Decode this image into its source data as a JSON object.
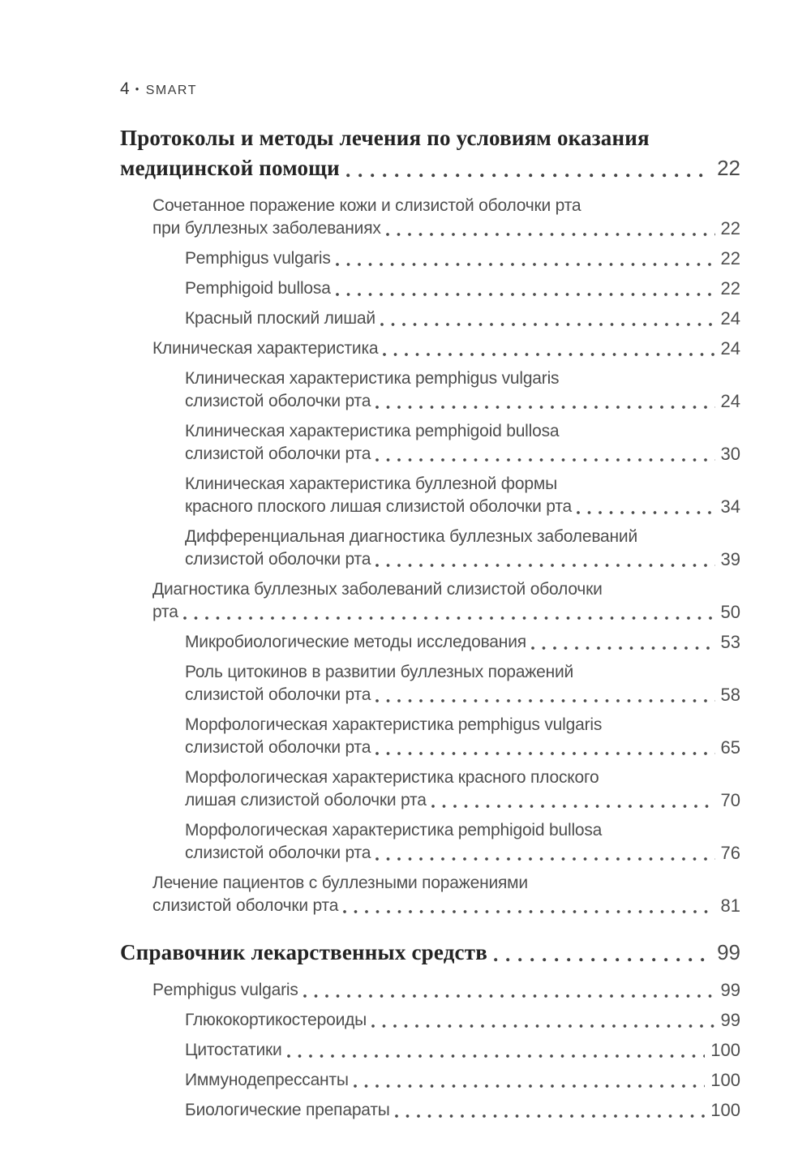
{
  "page": {
    "header": {
      "folio": "4",
      "sep": "•",
      "brand": "SMART"
    },
    "colors": {
      "chapter_text": "#242424",
      "body_text": "#4e4e4e",
      "background": "#ffffff"
    }
  },
  "toc": {
    "entries": [
      {
        "level": 0,
        "style": "chapter",
        "lines": [
          "Протоколы и методы лечения по условиям оказания",
          "медицинской помощи"
        ],
        "page": "22"
      },
      {
        "level": 1,
        "style": "section",
        "lines": [
          "Сочетанное поражение кожи и слизистой оболочки рта",
          "при буллезных заболеваниях"
        ],
        "page": "22"
      },
      {
        "level": 2,
        "style": "subsection",
        "lines": [
          "Pemphigus vulgaris"
        ],
        "page": "22"
      },
      {
        "level": 2,
        "style": "subsection",
        "lines": [
          "Pemphigoid bullosa"
        ],
        "page": "22"
      },
      {
        "level": 2,
        "style": "subsection",
        "lines": [
          "Красный плоский лишай"
        ],
        "page": "24"
      },
      {
        "level": 1,
        "style": "section",
        "lines": [
          "Клиническая характеристика"
        ],
        "page": "24"
      },
      {
        "level": 2,
        "style": "subsection",
        "lines": [
          "Клиническая характеристика pemphigus vulgaris",
          "слизистой оболочки рта"
        ],
        "page": "24"
      },
      {
        "level": 2,
        "style": "subsection",
        "lines": [
          "Клиническая характеристика pemphigoid bullosa",
          "слизистой оболочки рта"
        ],
        "page": "30"
      },
      {
        "level": 2,
        "style": "subsection",
        "lines": [
          "Клиническая характеристика буллезной формы",
          "красного плоского лишая слизистой оболочки рта"
        ],
        "page": "34"
      },
      {
        "level": 2,
        "style": "subsection",
        "lines": [
          "Дифференциальная диагностика буллезных заболеваний",
          "слизистой оболочки рта"
        ],
        "page": "39"
      },
      {
        "level": 1,
        "style": "section",
        "lines": [
          "Диагностика буллезных заболеваний слизистой оболочки",
          "рта"
        ],
        "page": "50"
      },
      {
        "level": 2,
        "style": "subsection",
        "lines": [
          "Микробиологические методы исследования"
        ],
        "page": "53"
      },
      {
        "level": 2,
        "style": "subsection",
        "lines": [
          "Роль цитокинов в развитии буллезных поражений",
          "слизистой оболочки рта"
        ],
        "page": "58"
      },
      {
        "level": 2,
        "style": "subsection",
        "lines": [
          "Морфологическая характеристика pemphigus vulgaris",
          "слизистой оболочки рта"
        ],
        "page": "65"
      },
      {
        "level": 2,
        "style": "subsection",
        "lines": [
          "Морфологическая характеристика красного плоского",
          "лишая слизистой оболочки рта"
        ],
        "page": "70"
      },
      {
        "level": 2,
        "style": "subsection",
        "lines": [
          "Морфологическая характеристика pemphigoid bullosa",
          "слизистой оболочки рта"
        ],
        "page": "76"
      },
      {
        "level": 1,
        "style": "section",
        "lines": [
          "Лечение пациентов с буллезными поражениями",
          "слизистой оболочки рта"
        ],
        "page": "81"
      },
      {
        "level": 0,
        "style": "chapter",
        "lines": [
          "Справочник лекарственных средств"
        ],
        "page": "99"
      },
      {
        "level": 1,
        "style": "section",
        "lines": [
          "Pemphigus vulgaris"
        ],
        "page": "99"
      },
      {
        "level": 2,
        "style": "subsection",
        "lines": [
          "Глюкокортикостероиды"
        ],
        "page": "99"
      },
      {
        "level": 2,
        "style": "subsection",
        "lines": [
          "Цитостатики"
        ],
        "page": "100"
      },
      {
        "level": 2,
        "style": "subsection",
        "lines": [
          "Иммунодепрессанты"
        ],
        "page": "100"
      },
      {
        "level": 2,
        "style": "subsection",
        "lines": [
          "Биологические препараты"
        ],
        "page": "100"
      }
    ]
  }
}
